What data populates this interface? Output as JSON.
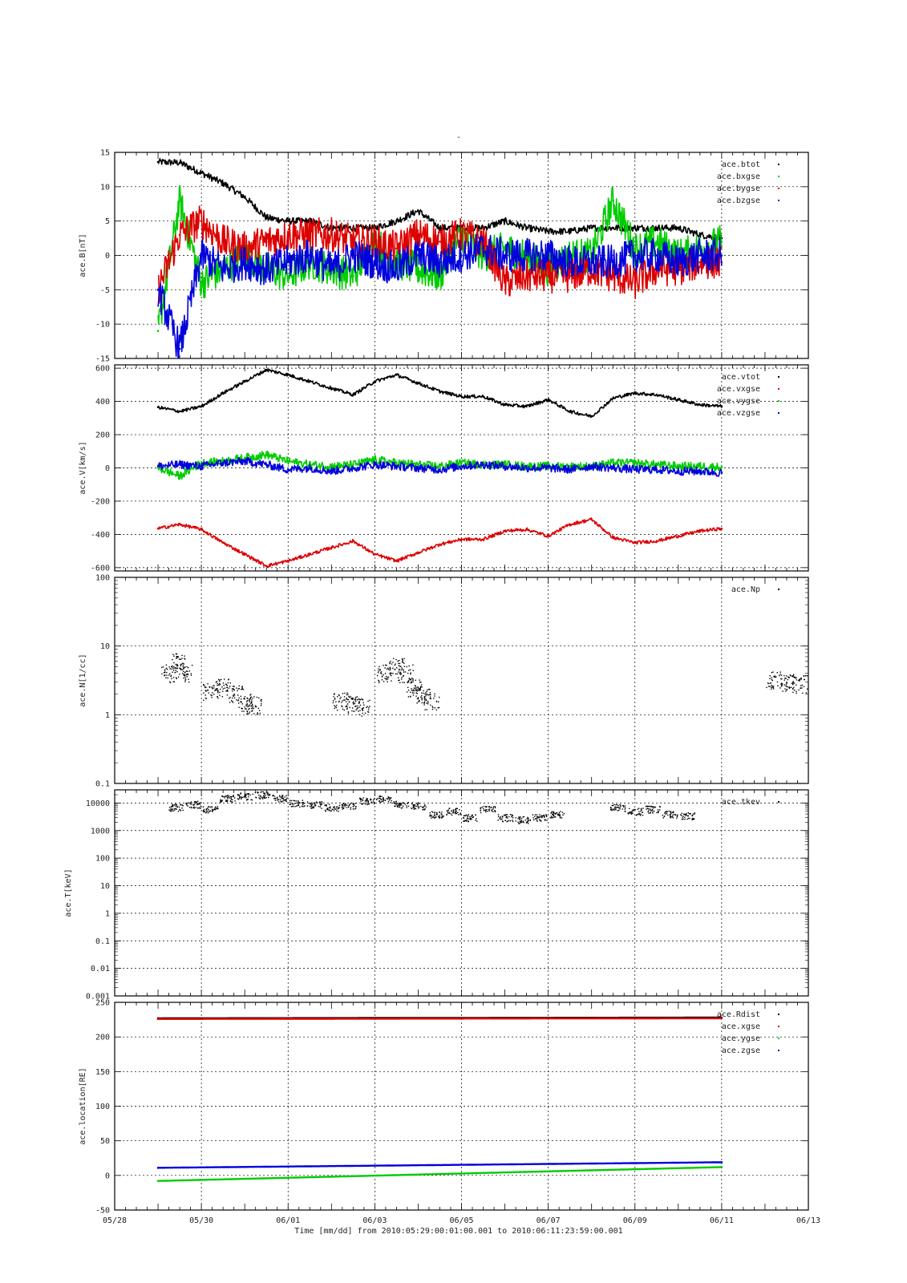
{
  "figure": {
    "title": "-",
    "xlabel": "Time [mm/dd]  from 2010:05:29:00:01:00.001  to  2010:06:11:23:59:00.001"
  },
  "chart_data": [
    {
      "type": "line",
      "ylabel": "ace.B[nT]",
      "ylim": [
        -15,
        15
      ],
      "yscale": "linear",
      "yticks": [
        "15",
        "10",
        "5",
        "0",
        "-5",
        "-10",
        "-15"
      ],
      "ytick_values": [
        15,
        10,
        5,
        0,
        -5,
        -10,
        -15
      ],
      "x_range": [
        "05/29",
        "06/12"
      ],
      "legend_position": "top-right",
      "series": [
        {
          "name": "ace.btot",
          "color": "#000000",
          "x": [
            0,
            0.5,
            1,
            1.5,
            2,
            2.5,
            3,
            3.5,
            4,
            4.5,
            5,
            5.5,
            6,
            6.5,
            7,
            7.5,
            8,
            8.5,
            9,
            9.5,
            10,
            10.5,
            11,
            11.5,
            12,
            12.5,
            13
          ],
          "y": [
            13.6,
            13.5,
            12,
            10.5,
            8.5,
            5.5,
            5,
            5,
            4,
            4,
            4,
            5,
            6.5,
            4,
            4,
            4,
            5,
            4,
            3.5,
            3.5,
            4,
            4,
            4,
            4,
            4,
            3,
            2.5
          ]
        },
        {
          "name": "ace.bxgse",
          "color": "#00cc00",
          "x": [
            0,
            0.5,
            1,
            1.5,
            2,
            2.5,
            3,
            3.5,
            4,
            4.5,
            5,
            5.5,
            6,
            6.5,
            7,
            7.5,
            8,
            8.5,
            9,
            9.5,
            10,
            10.5,
            11,
            11.5,
            12,
            12.5,
            13
          ],
          "y": [
            -11,
            8,
            -4,
            -2,
            0,
            -2,
            -3,
            -1,
            -2,
            -3,
            2,
            -1,
            -2,
            -3,
            3,
            0,
            1,
            0,
            -2,
            0,
            0,
            8,
            1,
            2,
            0,
            1,
            2
          ]
        },
        {
          "name": "ace.bygse",
          "color": "#dd0000",
          "x": [
            0,
            0.5,
            1,
            1.5,
            2,
            2.5,
            3,
            3.5,
            4,
            4.5,
            5,
            5.5,
            6,
            6.5,
            7,
            7.5,
            8,
            8.5,
            9,
            9.5,
            10,
            10.5,
            11,
            11.5,
            12,
            12.5,
            13
          ],
          "y": [
            -5,
            3,
            5,
            2,
            1,
            2,
            3,
            3,
            3,
            2,
            2,
            1,
            3,
            2,
            3,
            2,
            -4,
            -3,
            -3,
            -3,
            -2,
            -3,
            -4,
            -2,
            -2,
            -1,
            -1
          ]
        },
        {
          "name": "ace.bzgse",
          "color": "#0000dd",
          "x": [
            0,
            0.5,
            1,
            1.5,
            2,
            2.5,
            3,
            3.5,
            4,
            4.5,
            5,
            5.5,
            6,
            6.5,
            7,
            7.5,
            8,
            8.5,
            9,
            9.5,
            10,
            10.5,
            11,
            11.5,
            12,
            12.5,
            13
          ],
          "y": [
            -5,
            -13.6,
            0,
            -2,
            -1,
            -2,
            -1,
            0,
            -2,
            0,
            -1,
            -2,
            0,
            -1,
            0,
            1,
            0,
            0,
            0,
            -1,
            -1,
            -1,
            0,
            0,
            -1,
            0,
            0
          ]
        }
      ]
    },
    {
      "type": "line",
      "ylabel": "ace.V[km/s]",
      "ylim": [
        -620,
        620
      ],
      "yscale": "linear",
      "yticks": [
        "600",
        "400",
        "200",
        "0",
        "-200",
        "-400",
        "-600"
      ],
      "ytick_values": [
        600,
        400,
        200,
        0,
        -200,
        -400,
        -600
      ],
      "x_range": [
        "05/29",
        "06/12"
      ],
      "legend_position": "top-right",
      "series": [
        {
          "name": "ace.vtot",
          "color": "#000000",
          "x": [
            0,
            0.5,
            1,
            1.5,
            2,
            2.5,
            3,
            3.5,
            4,
            4.5,
            5,
            5.5,
            6,
            6.5,
            7,
            7.5,
            8,
            8.5,
            9,
            9.5,
            10,
            10.5,
            11,
            11.5,
            12,
            12.5,
            13
          ],
          "y": [
            365,
            340,
            370,
            450,
            520,
            590,
            560,
            520,
            480,
            440,
            520,
            560,
            510,
            460,
            430,
            430,
            380,
            370,
            410,
            340,
            310,
            420,
            450,
            440,
            410,
            380,
            370
          ]
        },
        {
          "name": "ace.vxgse",
          "color": "#dd0000",
          "x": [
            0,
            0.5,
            1,
            1.5,
            2,
            2.5,
            3,
            3.5,
            4,
            4.5,
            5,
            5.5,
            6,
            6.5,
            7,
            7.5,
            8,
            8.5,
            9,
            9.5,
            10,
            10.5,
            11,
            11.5,
            12,
            12.5,
            13
          ],
          "y": [
            -365,
            -340,
            -370,
            -450,
            -520,
            -590,
            -560,
            -520,
            -480,
            -440,
            -520,
            -560,
            -510,
            -460,
            -430,
            -430,
            -380,
            -370,
            -410,
            -340,
            -310,
            -420,
            -450,
            -440,
            -410,
            -380,
            -365
          ]
        },
        {
          "name": "ace.vygse",
          "color": "#00cc00",
          "x": [
            0,
            0.5,
            1,
            1.5,
            2,
            2.5,
            3,
            3.5,
            4,
            4.5,
            5,
            5.5,
            6,
            6.5,
            7,
            7.5,
            8,
            8.5,
            9,
            9.5,
            10,
            10.5,
            11,
            11.5,
            12,
            12.5,
            13
          ],
          "y": [
            0,
            -50,
            30,
            40,
            60,
            80,
            40,
            20,
            10,
            20,
            50,
            30,
            20,
            10,
            30,
            20,
            20,
            10,
            10,
            10,
            10,
            30,
            30,
            20,
            10,
            10,
            5
          ]
        },
        {
          "name": "ace.vzgse",
          "color": "#0000dd",
          "x": [
            0,
            0.5,
            1,
            1.5,
            2,
            2.5,
            3,
            3.5,
            4,
            4.5,
            5,
            5.5,
            6,
            6.5,
            7,
            7.5,
            8,
            8.5,
            9,
            9.5,
            10,
            10.5,
            11,
            11.5,
            12,
            12.5,
            13
          ],
          "y": [
            10,
            20,
            10,
            30,
            40,
            20,
            -10,
            0,
            -20,
            0,
            20,
            10,
            0,
            -10,
            10,
            20,
            10,
            0,
            0,
            -10,
            10,
            0,
            -10,
            -10,
            -20,
            -20,
            -30
          ]
        }
      ]
    },
    {
      "type": "scatter",
      "ylabel": "ace.N[1/cc]",
      "ylim": [
        0.1,
        100
      ],
      "yscale": "log",
      "yticks": [
        "100",
        "10",
        "1",
        "0.1"
      ],
      "ytick_values": [
        100,
        10,
        1,
        0.1
      ],
      "x_range": [
        "05/29",
        "06/12"
      ],
      "legend_position": "top-right",
      "series": [
        {
          "name": "ace.Np",
          "color": "#000000",
          "x": [
            0.25,
            0.45,
            0.6,
            1.2,
            1.5,
            1.8,
            2.0,
            2.2,
            4.2,
            4.5,
            4.7,
            5.2,
            5.5,
            5.7,
            5.9,
            6.1,
            6.3,
            14.2,
            14.5,
            14.8
          ],
          "y": [
            4,
            6,
            4,
            2.2,
            2.5,
            2.0,
            1.5,
            1.4,
            1.6,
            1.4,
            1.3,
            4,
            5,
            4,
            2.5,
            2,
            1.6,
            3.2,
            3.0,
            2.8
          ]
        }
      ]
    },
    {
      "type": "scatter",
      "ylabel": "ace.T[keV]",
      "ylim": [
        0.001,
        30000
      ],
      "yscale": "log",
      "yticks": [
        "10000",
        "1000",
        "100",
        "10",
        "1",
        "0.1",
        "0.01",
        "0.001"
      ],
      "ytick_values": [
        10000,
        1000,
        100,
        10,
        1,
        0.1,
        0.01,
        0.001
      ],
      "x_range": [
        "05/29",
        "06/12"
      ],
      "legend_position": "top-right",
      "series": [
        {
          "name": "ace.tkev",
          "color": "#000000",
          "x": [
            0.4,
            0.8,
            1.2,
            1.6,
            2.0,
            2.4,
            2.8,
            3.2,
            3.6,
            4.0,
            4.4,
            4.8,
            5.2,
            5.6,
            6.0,
            6.4,
            6.8,
            7.2,
            7.6,
            8.0,
            8.4,
            8.8,
            9.2,
            10.6,
            11.0,
            11.4,
            11.8,
            12.2
          ],
          "y": [
            7000,
            9000,
            6000,
            15000,
            18000,
            20000,
            15000,
            10000,
            9000,
            7000,
            8000,
            12000,
            14000,
            9000,
            8000,
            4000,
            5000,
            3000,
            6000,
            3000,
            2500,
            3000,
            4000,
            7000,
            5000,
            6000,
            4000,
            3500
          ]
        }
      ]
    },
    {
      "type": "line",
      "ylabel": "ace.location[RE]",
      "ylim": [
        -50,
        250
      ],
      "yscale": "linear",
      "yticks": [
        "250",
        "200",
        "150",
        "100",
        "50",
        "0",
        "-50"
      ],
      "ytick_values": [
        250,
        200,
        150,
        100,
        50,
        0,
        -50
      ],
      "x_range": [
        "05/29",
        "06/12"
      ],
      "xticks": [
        "05/28",
        "05/30",
        "06/01",
        "06/03",
        "06/05",
        "06/07",
        "06/09",
        "06/11",
        "06/13"
      ],
      "legend_position": "top-right",
      "series": [
        {
          "name": "ace.Rdist",
          "color": "#000000",
          "x": [
            0,
            13
          ],
          "y": [
            227,
            228
          ]
        },
        {
          "name": "ace.xgse",
          "color": "#dd0000",
          "x": [
            0,
            13
          ],
          "y": [
            226,
            227
          ]
        },
        {
          "name": "ace.ygse",
          "color": "#00cc00",
          "x": [
            0,
            13
          ],
          "y": [
            -8,
            12
          ]
        },
        {
          "name": "ace.zgse",
          "color": "#0000dd",
          "x": [
            0,
            13
          ],
          "y": [
            11,
            19
          ]
        }
      ]
    }
  ]
}
